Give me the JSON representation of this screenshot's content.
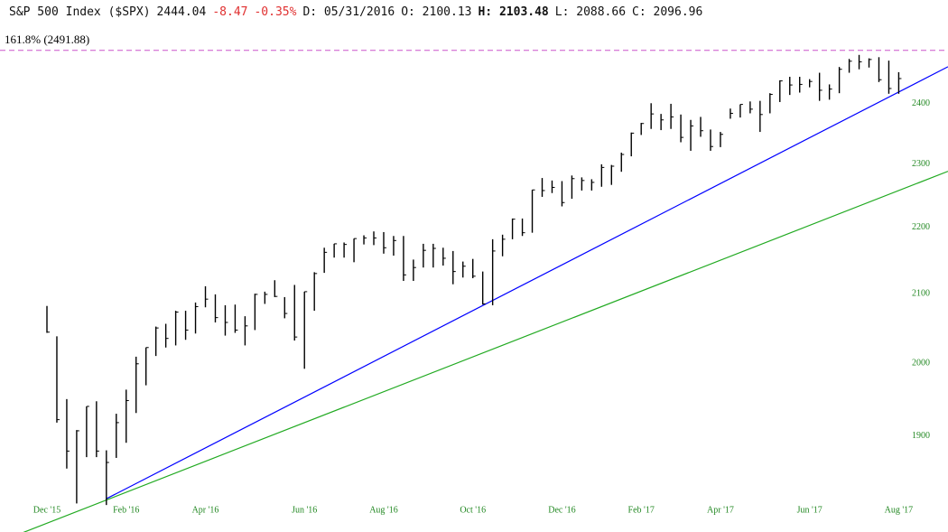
{
  "header": {
    "name": "S&P 500 Index ($SPX)",
    "last": "2444.04",
    "change": "-8.47",
    "change_pct": "-0.35%",
    "date": "D: 05/31/2016",
    "open": "O: 2100.13",
    "high_label": "H:",
    "high": "2103.48",
    "low": "L: 2088.66",
    "close": "C: 2096.96"
  },
  "chart_data": {
    "type": "hlc",
    "color": "#000000",
    "log_scale": true,
    "categories": [
      "Dec '15",
      null,
      null,
      null,
      null,
      null,
      null,
      null,
      "Feb '16",
      null,
      null,
      null,
      null,
      null,
      null,
      null,
      "Apr '16",
      null,
      null,
      null,
      null,
      null,
      null,
      null,
      null,
      null,
      "Jun '16",
      null,
      null,
      null,
      null,
      null,
      null,
      null,
      "Aug '16",
      null,
      null,
      null,
      null,
      null,
      null,
      null,
      null,
      "Oct '16",
      null,
      null,
      null,
      null,
      null,
      null,
      null,
      null,
      "Dec '16",
      null,
      null,
      null,
      null,
      null,
      null,
      null,
      "Feb '17",
      null,
      null,
      null,
      null,
      null,
      null,
      null,
      "Apr '17",
      null,
      null,
      null,
      null,
      null,
      null,
      null,
      null,
      "Jun '17",
      null,
      null,
      null,
      null,
      null,
      null,
      null,
      null,
      "Aug '17"
    ],
    "high": [
      2082,
      2038,
      1950,
      1908,
      1940,
      1947,
      1881,
      1930,
      1963,
      2009,
      2022,
      2052,
      2056,
      2075,
      2075,
      2087,
      2111,
      2099,
      2083,
      2084,
      2067,
      2100,
      2103,
      2120,
      2095,
      2113,
      2103,
      2132,
      2169,
      2175,
      2177,
      2183,
      2188,
      2194,
      2193,
      2187,
      2187,
      2151,
      2175,
      2175,
      2169,
      2164,
      2148,
      2152,
      2133,
      2182,
      2189,
      2214,
      2214,
      2259,
      2278,
      2274,
      2273,
      2282,
      2279,
      2276,
      2300,
      2299,
      2319,
      2352,
      2368,
      2401,
      2383,
      2400,
      2382,
      2373,
      2378,
      2357,
      2353,
      2392,
      2399,
      2404,
      2405,
      2418,
      2440,
      2446,
      2446,
      2442,
      2453,
      2433,
      2463,
      2477,
      2484,
      2478,
      2480,
      2474,
      2454
    ],
    "low": [
      2043,
      1918,
      1857,
      1812,
      1872,
      1872,
      1810,
      1871,
      1891,
      1931,
      1969,
      2010,
      2022,
      2025,
      2033,
      2042,
      2080,
      2058,
      2039,
      2043,
      2025,
      2047,
      2085,
      2095,
      2064,
      2032,
      1992,
      2075,
      2131,
      2154,
      2154,
      2147,
      2174,
      2173,
      2160,
      2157,
      2119,
      2119,
      2139,
      2139,
      2142,
      2114,
      2124,
      2123,
      2084,
      2083,
      2156,
      2182,
      2187,
      2192,
      2248,
      2254,
      2233,
      2245,
      2258,
      2258,
      2264,
      2267,
      2288,
      2313,
      2348,
      2358,
      2356,
      2358,
      2336,
      2322,
      2345,
      2322,
      2328,
      2375,
      2377,
      2384,
      2353,
      2384,
      2403,
      2415,
      2419,
      2428,
      2405,
      2407,
      2418,
      2453,
      2459,
      2462,
      2437,
      2417,
      2417
    ],
    "close": [
      2044,
      1922,
      1880,
      1907,
      1940,
      1880,
      1865,
      1918,
      1948,
      1999,
      2022,
      2050,
      2035,
      2073,
      2047,
      2081,
      2092,
      2065,
      2058,
      2047,
      2053,
      2099,
      2099,
      2096,
      2071,
      2037,
      2103,
      2130,
      2162,
      2175,
      2174,
      2183,
      2184,
      2184,
      2169,
      2180,
      2128,
      2139,
      2165,
      2168,
      2153,
      2133,
      2141,
      2126,
      2085,
      2164,
      2182,
      2213,
      2192,
      2259,
      2258,
      2263,
      2239,
      2277,
      2274,
      2271,
      2295,
      2297,
      2316,
      2351,
      2367,
      2383,
      2373,
      2378,
      2344,
      2363,
      2355,
      2329,
      2349,
      2384,
      2399,
      2391,
      2382,
      2416,
      2439,
      2432,
      2433,
      2438,
      2423,
      2425,
      2459,
      2473,
      2472,
      2476,
      2441,
      2426,
      2443
    ],
    "ylim": [
      1776,
      2525
    ],
    "yticks": [
      1900,
      2000,
      2100,
      2200,
      2300,
      2400
    ],
    "fib_level": {
      "label": "161.8% (2491.88)",
      "value": 2491.88,
      "color": "#cc55cc"
    },
    "trendlines": [
      {
        "color": "#0000ff",
        "x": [
          6,
          86
        ],
        "values": [
          1818,
          2420
        ],
        "extend": "right"
      },
      {
        "color": "#22aa22",
        "x": [
          0,
          86
        ],
        "values": [
          1787,
          2258
        ],
        "extend": "both"
      }
    ],
    "tick_color": "#228822"
  }
}
